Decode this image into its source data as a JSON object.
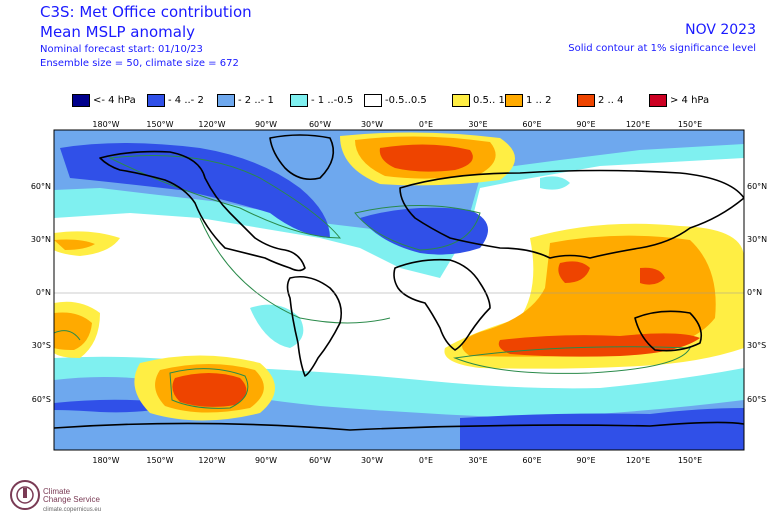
{
  "header": {
    "title": "C3S: Met Office contribution",
    "variable": "Mean MSLP anomaly",
    "forecast_start": "Nominal forecast start: 01/10/23",
    "ensemble": "Ensemble size = 50, climate size = 672",
    "period": "NOV 2023",
    "contour_note": "Solid contour at 1% significance level"
  },
  "legend": [
    {
      "label": "<- 4 hPa",
      "color": "#00008c"
    },
    {
      "label": "- 4 ..- 2",
      "color": "#3050e8"
    },
    {
      "label": "- 2 ..- 1",
      "color": "#6ea8ee"
    },
    {
      "label": "- 1 ..-0.5",
      "color": "#7ff0f0"
    },
    {
      "label": "-0.5..0.5",
      "color": "#ffffff"
    },
    {
      "label": "0.5.. 1",
      "color": "#ffee44"
    },
    {
      "label": "1 .. 2",
      "color": "#ffaa00"
    },
    {
      "label": "2 .. 4",
      "color": "#ee4400"
    },
    {
      "label": "> 4 hPa",
      "color": "#cc0022"
    }
  ],
  "axes": {
    "lon_labels": [
      "180°W",
      "150°W",
      "120°W",
      "90°W",
      "60°W",
      "30°W",
      "0°E",
      "30°E",
      "60°E",
      "90°E",
      "120°E",
      "150°E"
    ],
    "lat_labels": [
      "60°N",
      "30°N",
      "0°N",
      "30°S",
      "60°S"
    ]
  },
  "footer": {
    "org_line1": "Climate",
    "org_line2": "Change Service",
    "url": "climate.copernicus.eu"
  },
  "icons": {
    "logo": "copernicus-logo-icon"
  }
}
